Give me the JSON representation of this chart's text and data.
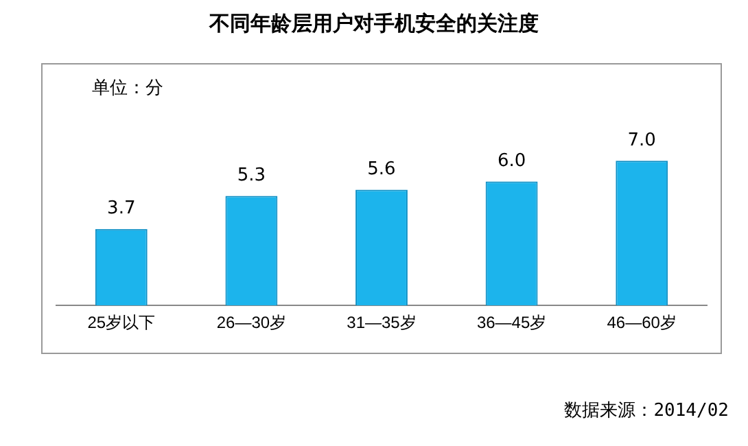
{
  "chart_data": {
    "type": "bar",
    "title": "不同年龄层用户对手机安全的关注度",
    "categories": [
      "25岁以下",
      "26—30岁",
      "31—35岁",
      "36—45岁",
      "46—60岁"
    ],
    "values": [
      3.7,
      5.3,
      5.6,
      6.0,
      7.0
    ],
    "value_labels": [
      "3.7",
      "5.3",
      "5.6",
      "6.0",
      "7.0"
    ],
    "color": "#1cb4ec",
    "grid": false,
    "legend": false,
    "annotations": [
      "单位：分",
      "数据来源：2014/02"
    ]
  }
}
